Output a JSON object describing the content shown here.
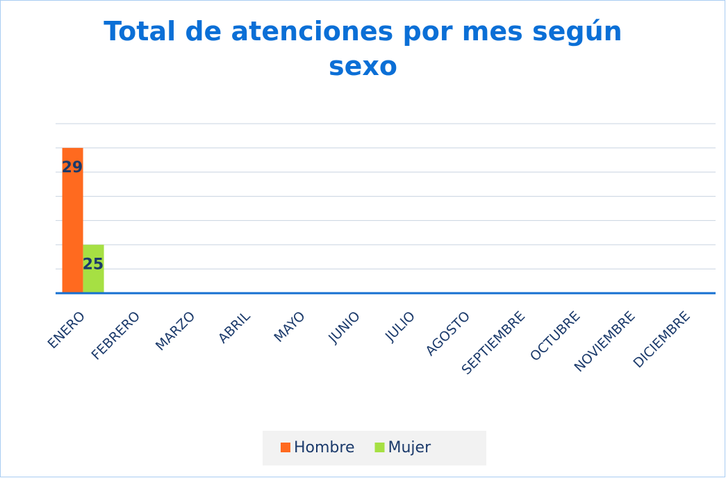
{
  "chart_data": {
    "type": "bar",
    "title": "Total de atenciones por mes según sexo",
    "categories": [
      "ENERO",
      "FEBRERO",
      "MARZO",
      "ABRIL",
      "MAYO",
      "JUNIO",
      "JULIO",
      "AGOSTO",
      "SEPTIEMBRE",
      "OCTUBRE",
      "NOVIEMBRE",
      "DICIEMBRE"
    ],
    "series": [
      {
        "name": "Hombre",
        "color": "#ff6a1f",
        "values": [
          29,
          null,
          null,
          null,
          null,
          null,
          null,
          null,
          null,
          null,
          null,
          null
        ]
      },
      {
        "name": "Mujer",
        "color": "#a6e043",
        "values": [
          25,
          null,
          null,
          null,
          null,
          null,
          null,
          null,
          null,
          null,
          null,
          null
        ]
      }
    ],
    "ylim": [
      23,
      30
    ],
    "yticks": [
      23,
      24,
      25,
      26,
      27,
      28,
      29,
      30
    ],
    "grid": true,
    "legend": "bottom"
  }
}
